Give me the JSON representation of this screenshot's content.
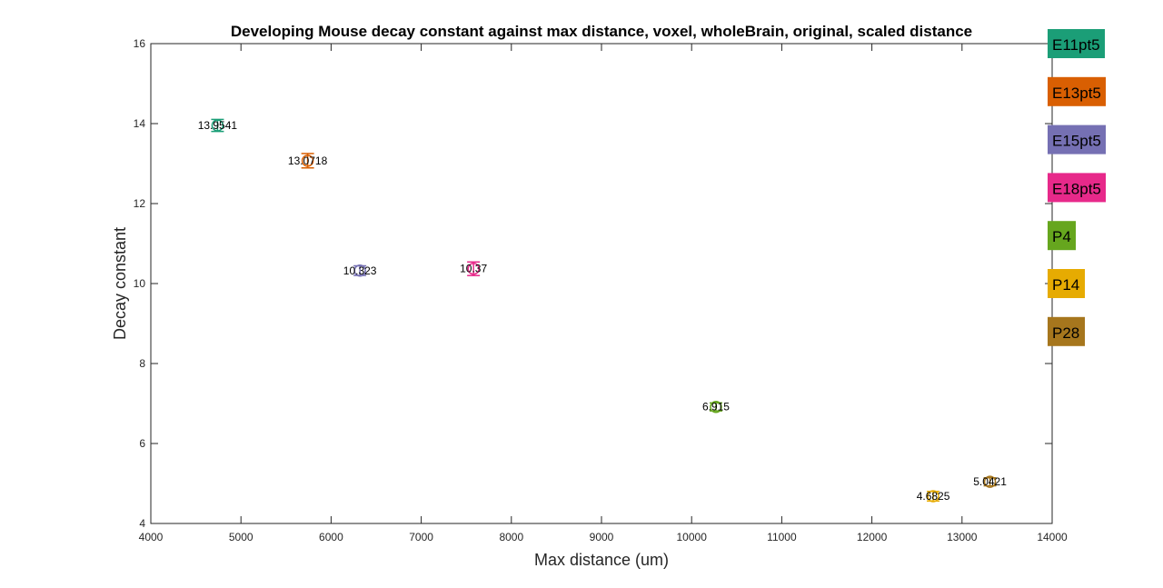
{
  "chart_data": {
    "type": "scatter",
    "title": "Developing Mouse decay constant against max distance, voxel, wholeBrain, original, scaled distance",
    "xlabel": "Max distance (um)",
    "ylabel": "Decay constant",
    "xlim": [
      4000,
      14000
    ],
    "ylim": [
      4,
      16
    ],
    "xticks": [
      "4000",
      "5000",
      "6000",
      "7000",
      "8000",
      "9000",
      "10000",
      "11000",
      "12000",
      "13000",
      "14000"
    ],
    "yticks": [
      "4",
      "6",
      "8",
      "10",
      "12",
      "14",
      "16"
    ],
    "grid": false,
    "legend_position": "right, outside plot",
    "series": [
      {
        "name": "E11pt5",
        "color": "#1b9e77",
        "x": 4740,
        "y": 13.9541,
        "err": 0.15,
        "label": "13.9541"
      },
      {
        "name": "E13pt5",
        "color": "#d95f02",
        "x": 5740,
        "y": 13.0718,
        "err": 0.18,
        "label": "13.0718"
      },
      {
        "name": "E15pt5",
        "color": "#7570b3",
        "x": 6320,
        "y": 10.323,
        "err": 0.12,
        "label": "10.323"
      },
      {
        "name": "E18pt5",
        "color": "#e7298a",
        "x": 7580,
        "y": 10.37,
        "err": 0.17,
        "label": "10.37"
      },
      {
        "name": "P4",
        "color": "#66a61e",
        "x": 10270,
        "y": 6.915,
        "err": 0.1,
        "label": "6.915"
      },
      {
        "name": "P14",
        "color": "#e6ab02",
        "x": 12680,
        "y": 4.6825,
        "err": 0.12,
        "label": "4.6825"
      },
      {
        "name": "P28",
        "color": "#a6761d",
        "x": 13310,
        "y": 5.0421,
        "err": 0.1,
        "label": "5.0421"
      }
    ]
  }
}
